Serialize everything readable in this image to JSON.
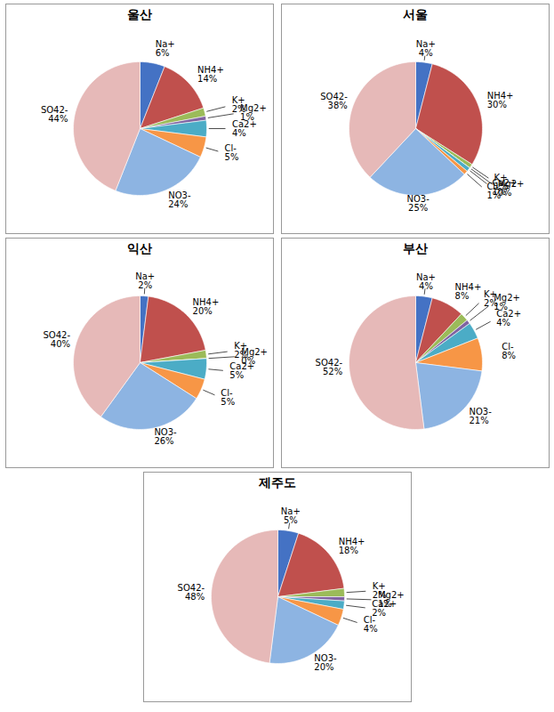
{
  "chart_data": [
    {
      "type": "pie",
      "title": "울산",
      "categories": [
        "Na+",
        "NH4+",
        "K+",
        "Mg2+",
        "Ca2+",
        "Cl-",
        "NO3-",
        "SO42-"
      ],
      "values": [
        6,
        14,
        2,
        1,
        4,
        5,
        24,
        44
      ],
      "value_labels": [
        "6%",
        "14%",
        "2%",
        "1%",
        "4%",
        "5%",
        "24%",
        "44%"
      ],
      "colors": [
        "#4472C4",
        "#C0504D",
        "#9BBB59",
        "#8064A2",
        "#4BACC6",
        "#F79646",
        "#8DB4E2",
        "#E6B9B8"
      ],
      "data_labels": true
    },
    {
      "type": "pie",
      "title": "서울",
      "categories": [
        "Na+",
        "NH4+",
        "K+",
        "Mg2+",
        "Ca2+",
        "Cl-",
        "NO3-",
        "SO42-"
      ],
      "values": [
        4,
        30,
        1,
        0,
        1,
        1,
        25,
        38
      ],
      "value_labels": [
        "4%",
        "30%",
        "1%",
        "0%",
        "1%",
        "1%",
        "25%",
        "38%"
      ],
      "colors": [
        "#4472C4",
        "#C0504D",
        "#9BBB59",
        "#8064A2",
        "#4BACC6",
        "#F79646",
        "#8DB4E2",
        "#E6B9B8"
      ],
      "data_labels": true
    },
    {
      "type": "pie",
      "title": "익산",
      "categories": [
        "Na+",
        "NH4+",
        "K+",
        "Mg2+",
        "Ca2+",
        "Cl-",
        "NO3-",
        "SO42-"
      ],
      "values": [
        2,
        20,
        2,
        0,
        5,
        5,
        26,
        40
      ],
      "value_labels": [
        "2%",
        "20%",
        "2%",
        "0%",
        "5%",
        "5%",
        "26%",
        "40%"
      ],
      "colors": [
        "#4472C4",
        "#C0504D",
        "#9BBB59",
        "#8064A2",
        "#4BACC6",
        "#F79646",
        "#8DB4E2",
        "#E6B9B8"
      ],
      "data_labels": true
    },
    {
      "type": "pie",
      "title": "부산",
      "categories": [
        "Na+",
        "NH4+",
        "K+",
        "Mg2+",
        "Ca2+",
        "Cl-",
        "NO3-",
        "SO42-"
      ],
      "values": [
        4,
        8,
        2,
        1,
        4,
        8,
        21,
        52
      ],
      "value_labels": [
        "4%",
        "8%",
        "2%",
        "1%",
        "4%",
        "8%",
        "21%",
        "52%"
      ],
      "colors": [
        "#4472C4",
        "#C0504D",
        "#9BBB59",
        "#8064A2",
        "#4BACC6",
        "#F79646",
        "#8DB4E2",
        "#E6B9B8"
      ],
      "data_labels": true
    },
    {
      "type": "pie",
      "title": "제주도",
      "categories": [
        "Na+",
        "NH4+",
        "K+",
        "Mg2+",
        "Ca2+",
        "Cl-",
        "NO3-",
        "SO42-"
      ],
      "values": [
        5,
        18,
        2,
        1,
        2,
        4,
        20,
        48
      ],
      "value_labels": [
        "5%",
        "18%",
        "2%",
        "1%",
        "2%",
        "4%",
        "20%",
        "48%"
      ],
      "colors": [
        "#4472C4",
        "#C0504D",
        "#9BBB59",
        "#8064A2",
        "#4BACC6",
        "#F79646",
        "#8DB4E2",
        "#E6B9B8"
      ],
      "data_labels": true
    }
  ]
}
